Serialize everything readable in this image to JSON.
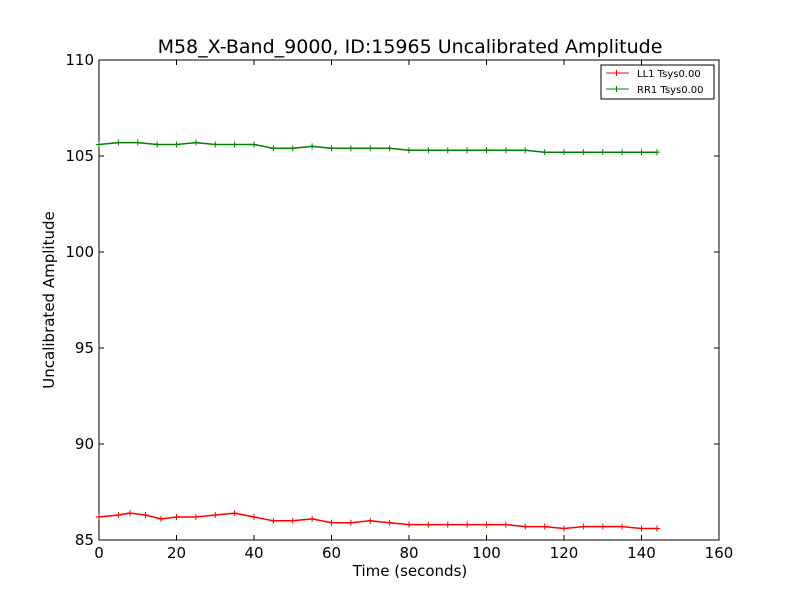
{
  "chart_data": {
    "type": "line",
    "title": "M58_X-Band_9000, ID:15965 Uncalibrated Amplitude",
    "xlabel": "Time (seconds)",
    "ylabel": "Uncalibrated Amplitude",
    "xlim": [
      0,
      160
    ],
    "ylim": [
      85,
      110
    ],
    "xticks": [
      0,
      20,
      40,
      60,
      80,
      100,
      120,
      140,
      160
    ],
    "yticks": [
      85,
      90,
      95,
      100,
      105,
      110
    ],
    "legend_position": "top-right",
    "series": [
      {
        "name": "LL1 Tsys0.00",
        "color": "#ff0000",
        "x": [
          0,
          5,
          8,
          12,
          16,
          20,
          25,
          30,
          35,
          40,
          45,
          50,
          55,
          60,
          65,
          70,
          75,
          80,
          85,
          90,
          95,
          100,
          105,
          110,
          115,
          120,
          125,
          130,
          135,
          140,
          144
        ],
        "y": [
          86.2,
          86.3,
          86.4,
          86.3,
          86.1,
          86.2,
          86.2,
          86.3,
          86.4,
          86.2,
          86.0,
          86.0,
          86.1,
          85.9,
          85.9,
          86.0,
          85.9,
          85.8,
          85.8,
          85.8,
          85.8,
          85.8,
          85.8,
          85.7,
          85.7,
          85.6,
          85.7,
          85.7,
          85.7,
          85.6,
          85.6
        ]
      },
      {
        "name": "RR1 Tsys0.00",
        "color": "#008000",
        "x": [
          0,
          5,
          10,
          15,
          20,
          25,
          30,
          35,
          40,
          45,
          50,
          55,
          60,
          65,
          70,
          75,
          80,
          85,
          90,
          95,
          100,
          105,
          110,
          115,
          120,
          125,
          130,
          135,
          140,
          144
        ],
        "y": [
          105.6,
          105.7,
          105.7,
          105.6,
          105.6,
          105.7,
          105.6,
          105.6,
          105.6,
          105.4,
          105.4,
          105.5,
          105.4,
          105.4,
          105.4,
          105.4,
          105.3,
          105.3,
          105.3,
          105.3,
          105.3,
          105.3,
          105.3,
          105.2,
          105.2,
          105.2,
          105.2,
          105.2,
          105.2,
          105.2
        ]
      }
    ]
  }
}
